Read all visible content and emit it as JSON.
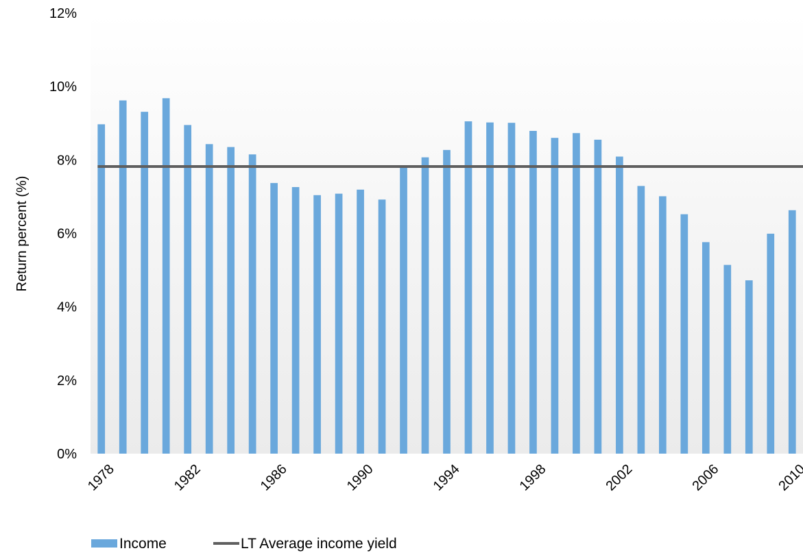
{
  "chart_data": {
    "type": "bar",
    "title": "",
    "xlabel": "",
    "ylabel": "Return percent (%)",
    "ylim": [
      0,
      12
    ],
    "y_ticks": [
      "0%",
      "2%",
      "4%",
      "6%",
      "8%",
      "10%",
      "12%"
    ],
    "x_tick_labels": [
      "1978",
      "1982",
      "1986",
      "1990",
      "1994",
      "1998",
      "2002",
      "2006",
      "2010"
    ],
    "categories": [
      "1978",
      "1979",
      "1980",
      "1981",
      "1982",
      "1983",
      "1984",
      "1985",
      "1986",
      "1987",
      "1988",
      "1989",
      "1990",
      "1991",
      "1992",
      "1993",
      "1994",
      "1995",
      "1996",
      "1997",
      "1998",
      "1999",
      "2000",
      "2001",
      "2002",
      "2003",
      "2004",
      "2005",
      "2006",
      "2007",
      "2008",
      "2009",
      "2010"
    ],
    "series": [
      {
        "name": "Income",
        "type": "bar",
        "color": "#6aa8dc",
        "values": [
          8.97,
          9.62,
          9.31,
          9.68,
          8.95,
          8.43,
          8.35,
          8.15,
          7.37,
          7.26,
          7.04,
          7.08,
          7.19,
          6.92,
          7.82,
          8.07,
          8.27,
          9.05,
          9.02,
          9.01,
          8.79,
          8.6,
          8.73,
          8.55,
          8.09,
          7.29,
          7.01,
          6.52,
          5.76,
          5.14,
          4.72,
          5.99,
          6.63
        ]
      },
      {
        "name": "LT Average income yield",
        "type": "line",
        "color": "#5f5f5f",
        "value": 7.82
      }
    ],
    "grid": false,
    "legend": "bottom-left"
  }
}
